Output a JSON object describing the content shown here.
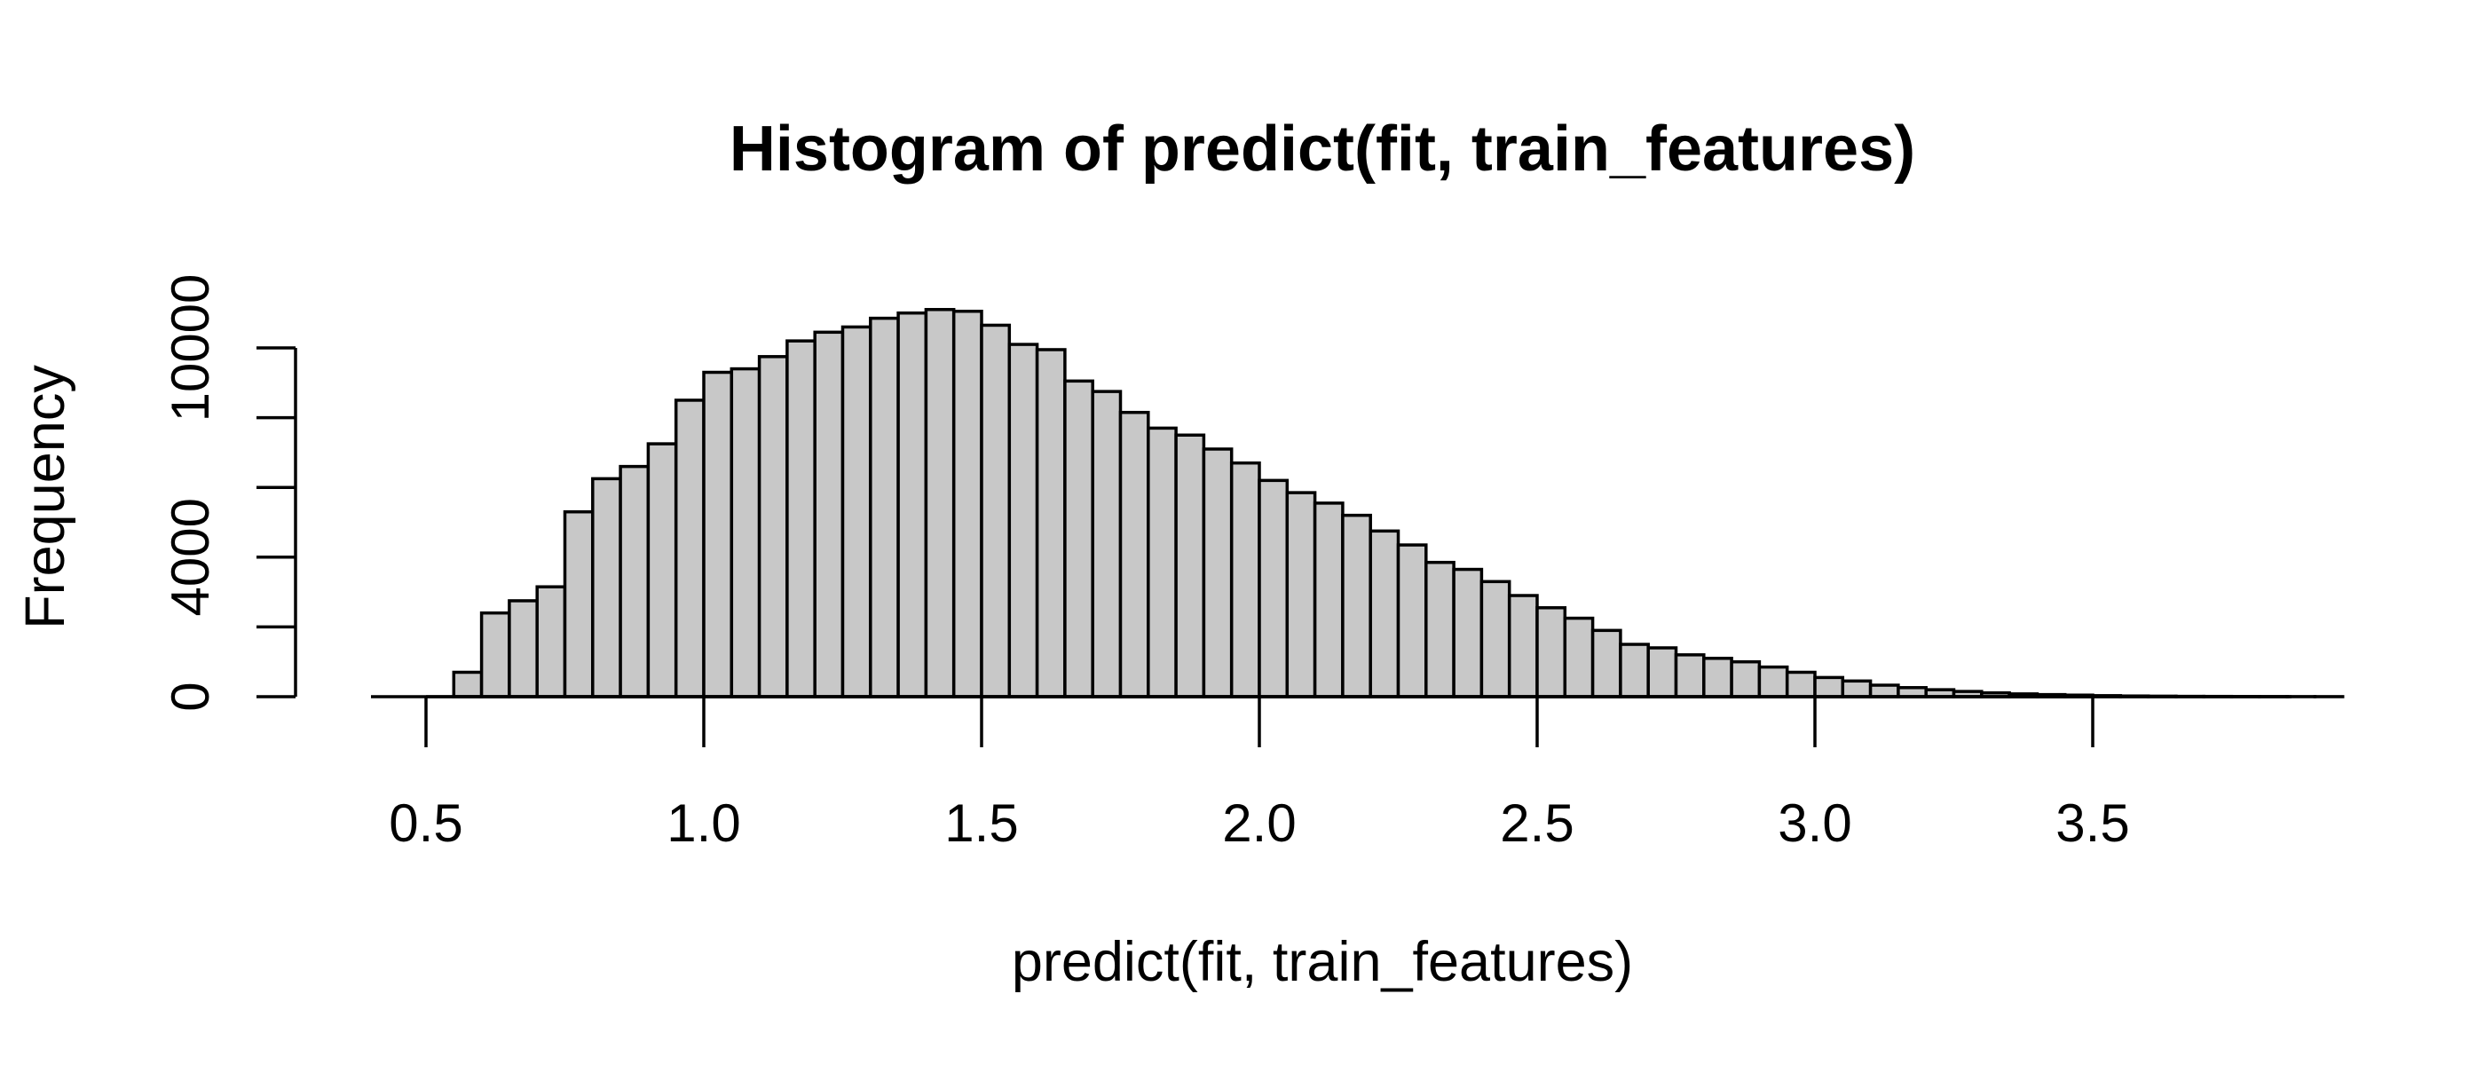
{
  "chart_data": {
    "type": "bar",
    "title": "Histogram of predict(fit, train_features)",
    "xlabel": "predict(fit, train_features)",
    "ylabel": "Frequency",
    "xlim": [
      0.4,
      3.85
    ],
    "ylim": [
      0,
      12000
    ],
    "x_ticks": [
      0.5,
      1.0,
      1.5,
      2.0,
      2.5,
      3.0,
      3.5
    ],
    "x_tick_labels": [
      "0.5",
      "1.0",
      "1.5",
      "2.0",
      "2.5",
      "3.0",
      "3.5"
    ],
    "y_ticks": [
      0,
      2000,
      4000,
      6000,
      8000,
      10000
    ],
    "y_tick_labels": [
      "0",
      "4000",
      "10000"
    ],
    "y_tick_labeled_values": [
      0,
      4000,
      10000
    ],
    "bin_width": 0.05,
    "bin_start": 0.55,
    "values": [
      700,
      2400,
      2750,
      3150,
      5300,
      6250,
      6600,
      7250,
      8500,
      9300,
      9400,
      9750,
      10200,
      10450,
      10600,
      10850,
      11000,
      11100,
      11050,
      10650,
      10100,
      9950,
      9050,
      8750,
      8150,
      7700,
      7500,
      7100,
      6700,
      6200,
      5850,
      5550,
      5200,
      4750,
      4350,
      3850,
      3650,
      3300,
      2900,
      2550,
      2250,
      1900,
      1500,
      1400,
      1200,
      1100,
      1000,
      850,
      700,
      550,
      450,
      330,
      260,
      200,
      150,
      110,
      80,
      60,
      45,
      30,
      20,
      15,
      10,
      8,
      5,
      4,
      3,
      2
    ],
    "colors": {
      "bar_fill": "#c8c8c8",
      "bar_stroke": "#000000"
    }
  }
}
